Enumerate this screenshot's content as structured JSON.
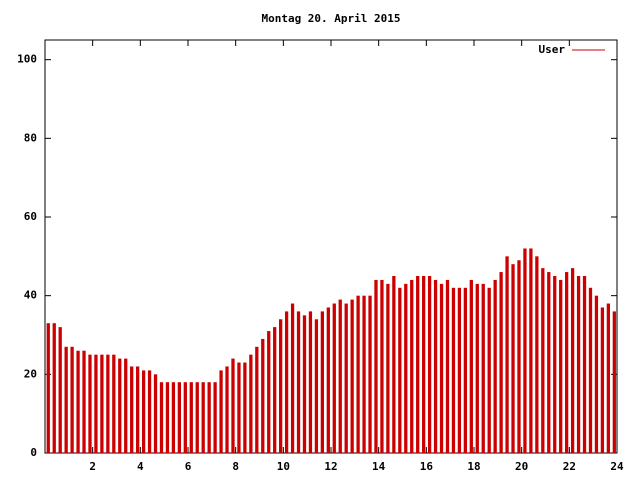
{
  "chart_data": {
    "type": "impulse",
    "title": "Montag 20. April 2015",
    "x": [
      0,
      0.25,
      0.5,
      0.75,
      1,
      1.25,
      1.5,
      1.75,
      2,
      2.25,
      2.5,
      2.75,
      3,
      3.25,
      3.5,
      3.75,
      4,
      4.25,
      4.5,
      4.75,
      5,
      5.25,
      5.5,
      5.75,
      6,
      6.25,
      6.5,
      6.75,
      7,
      7.25,
      7.5,
      7.75,
      8,
      8.25,
      8.5,
      8.75,
      9,
      9.25,
      9.5,
      9.75,
      10,
      10.25,
      10.5,
      10.75,
      11,
      11.25,
      11.5,
      11.75,
      12,
      12.25,
      12.5,
      12.75,
      13,
      13.25,
      13.5,
      13.75,
      14,
      14.25,
      14.5,
      14.75,
      15,
      15.25,
      15.5,
      15.75,
      16,
      16.25,
      16.5,
      16.75,
      17,
      17.25,
      17.5,
      17.75,
      18,
      18.25,
      18.5,
      18.75,
      19,
      19.25,
      19.5,
      19.75,
      20,
      20.25,
      20.5,
      20.75,
      21,
      21.25,
      21.5,
      21.75,
      22,
      22.25,
      22.5,
      22.75,
      23,
      23.25,
      23.5,
      23.75
    ],
    "series": [
      {
        "name": "User",
        "color": "#cc0000",
        "values": [
          33,
          33,
          32,
          27,
          27,
          26,
          26,
          25,
          25,
          25,
          25,
          25,
          24,
          24,
          22,
          22,
          21,
          21,
          20,
          18,
          18,
          18,
          18,
          18,
          18,
          18,
          18,
          18,
          18,
          21,
          22,
          24,
          23,
          23,
          25,
          27,
          29,
          31,
          32,
          34,
          36,
          38,
          36,
          35,
          36,
          34,
          36,
          37,
          38,
          39,
          38,
          39,
          40,
          40,
          40,
          44,
          44,
          43,
          45,
          42,
          43,
          44,
          45,
          45,
          45,
          44,
          43,
          44,
          42,
          42,
          42,
          44,
          43,
          43,
          42,
          44,
          46,
          50,
          48,
          49,
          52,
          52,
          50,
          47,
          46,
          45,
          44,
          46,
          47,
          45,
          45,
          42,
          40,
          37,
          38,
          36
        ]
      }
    ],
    "xlim": [
      0,
      24
    ],
    "xticks": [
      2,
      4,
      6,
      8,
      10,
      12,
      14,
      16,
      18,
      20,
      22,
      24
    ],
    "ylim": [
      0,
      105
    ],
    "yticks": [
      0,
      20,
      40,
      60,
      80,
      100
    ],
    "legend": "upper right"
  }
}
